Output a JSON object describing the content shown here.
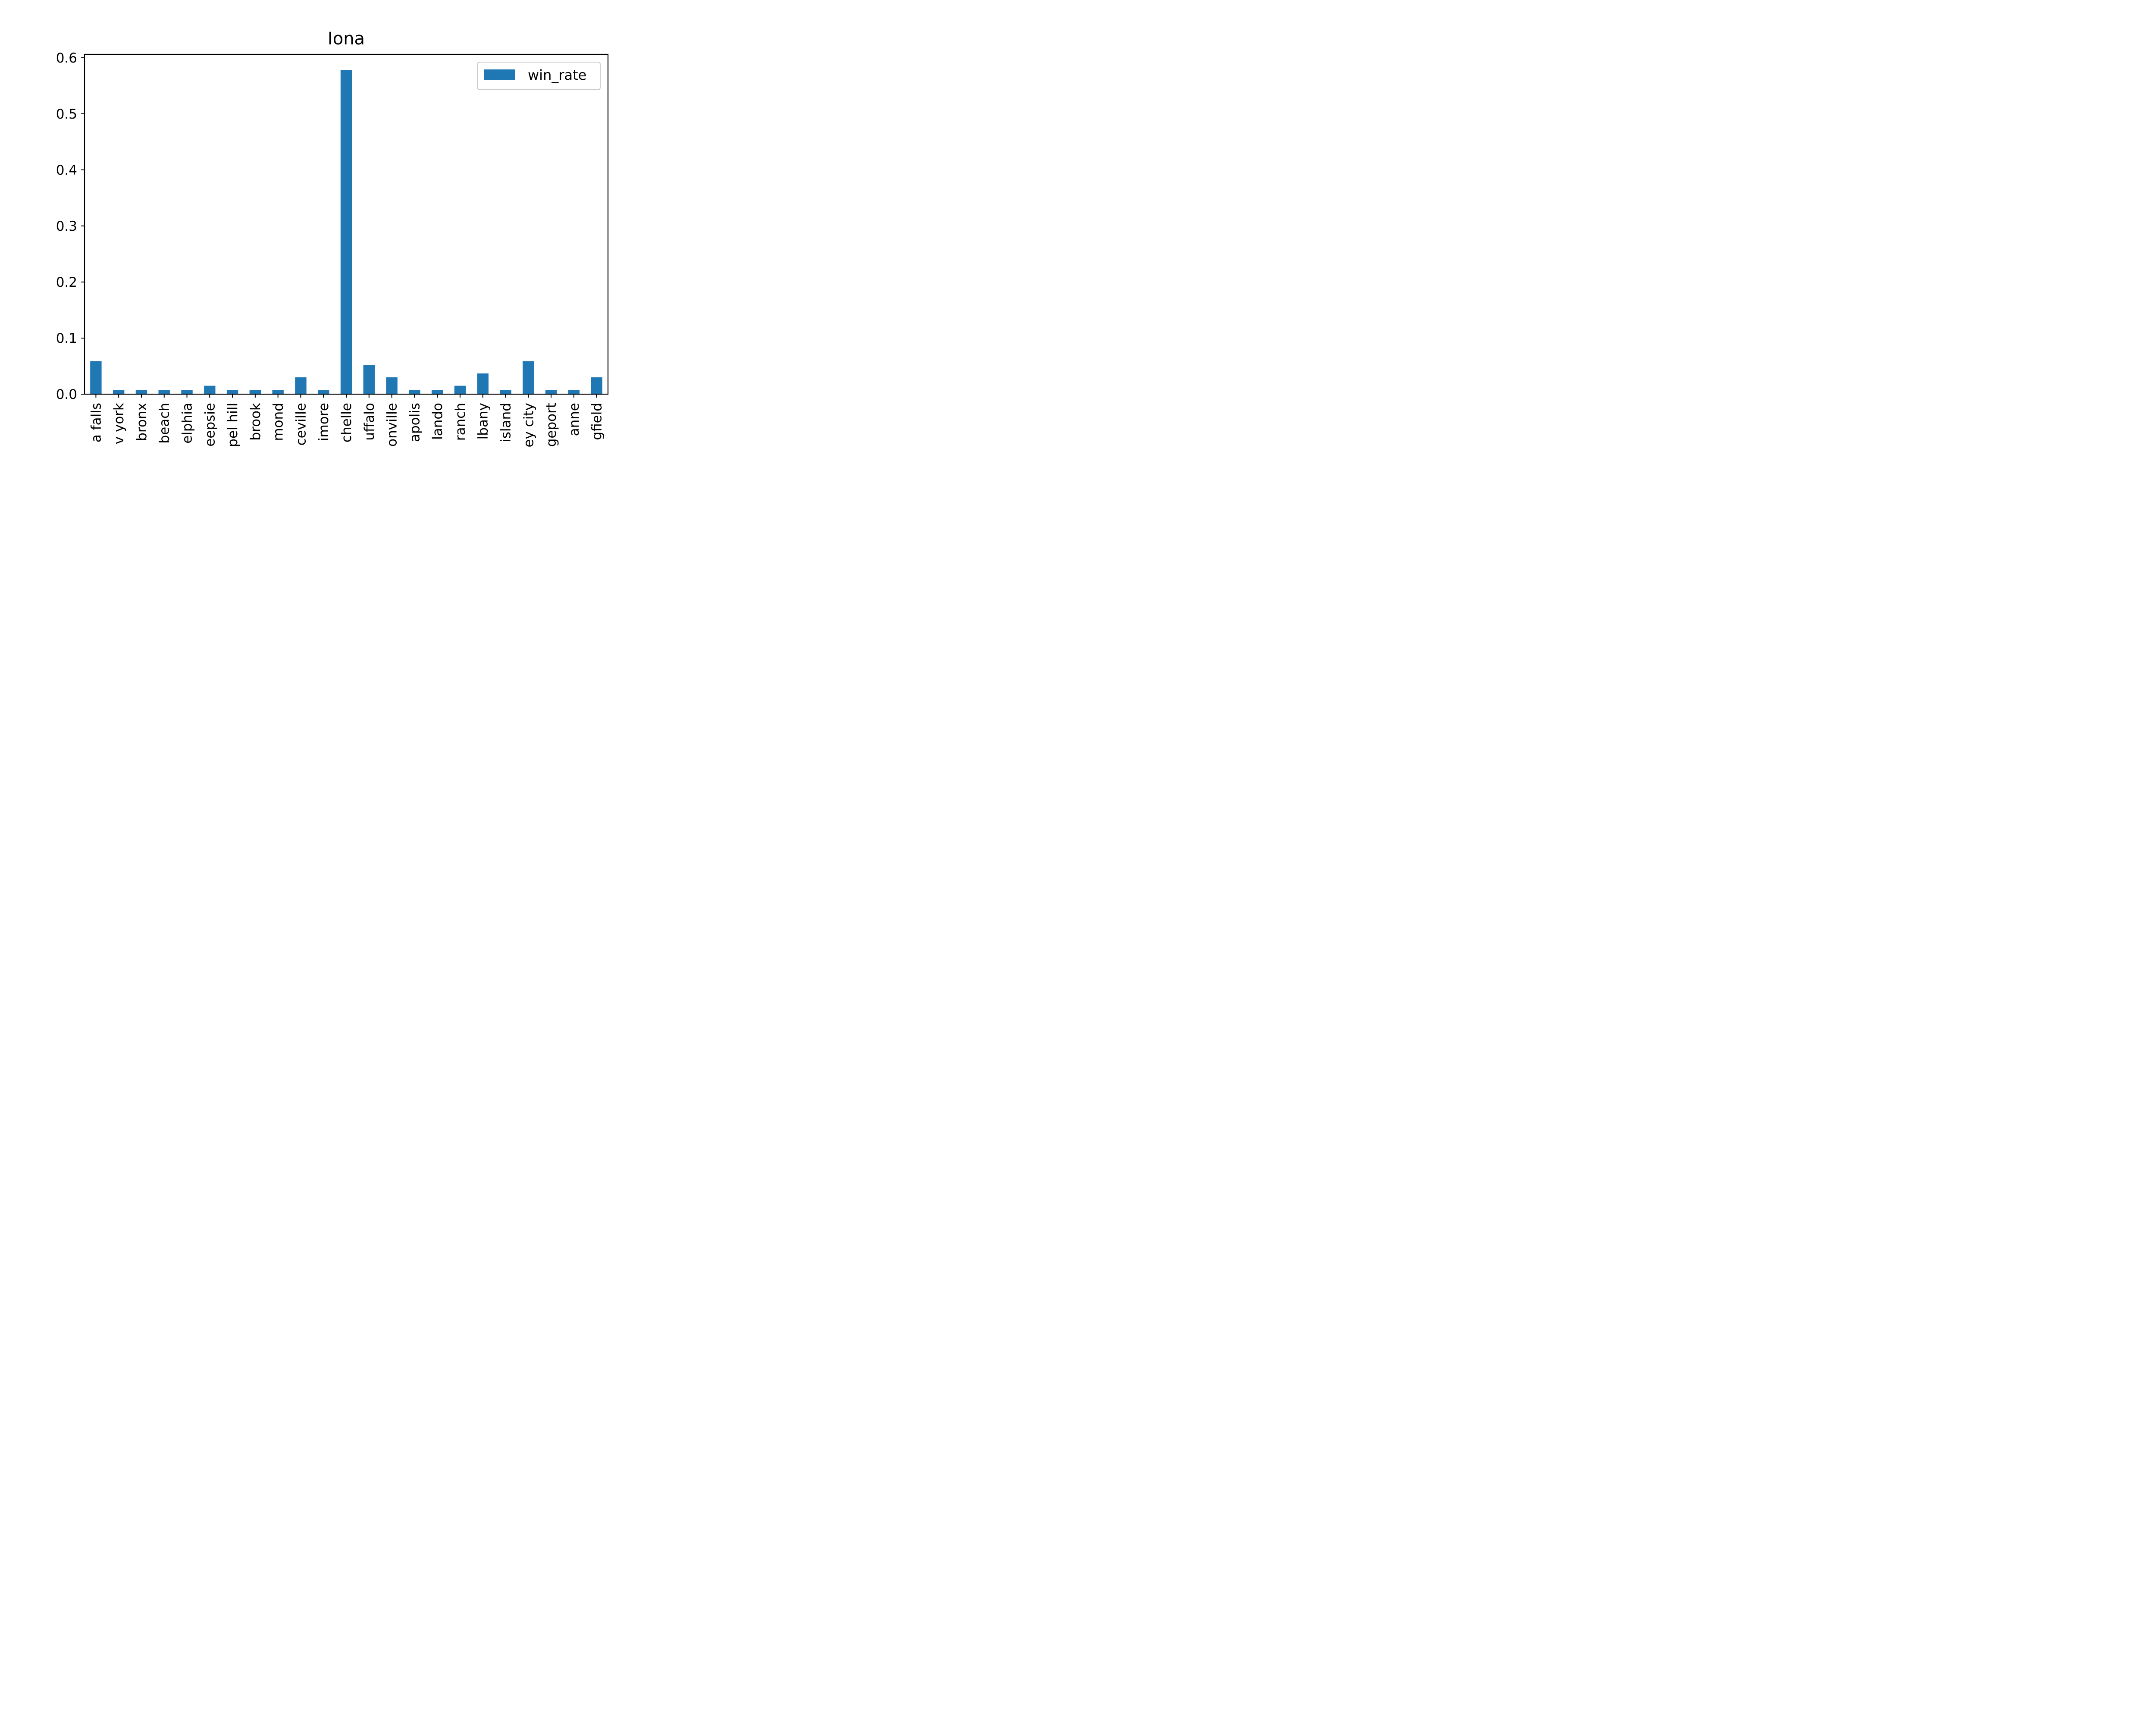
{
  "chart_data": {
    "type": "bar",
    "title": "Iona",
    "xlabel": "",
    "ylabel": "",
    "legend": {
      "placement": "top-right",
      "entries": [
        "win_rate"
      ]
    },
    "categories": [
      "a falls",
      "v york",
      "bronx",
      "beach",
      "elphia",
      "eepsie",
      "pel hill",
      "brook",
      "mond",
      "ceville",
      "imore",
      "chelle",
      "uffalo",
      "onville",
      "apolis",
      "lando",
      "ranch",
      "lbany",
      "island",
      "ey city",
      "geport",
      "anne",
      "gfield"
    ],
    "series": [
      {
        "name": "win_rate",
        "color": "#1f77b4",
        "values": [
          0.059,
          0.007,
          0.007,
          0.007,
          0.007,
          0.015,
          0.007,
          0.007,
          0.007,
          0.03,
          0.007,
          0.578,
          0.052,
          0.03,
          0.007,
          0.007,
          0.015,
          0.037,
          0.007,
          0.059,
          0.007,
          0.007,
          0.03
        ]
      }
    ],
    "ylim": [
      0,
      0.606
    ],
    "yticks": [
      "0.0",
      "0.1",
      "0.2",
      "0.3",
      "0.4",
      "0.5",
      "0.6"
    ],
    "grid": false
  }
}
